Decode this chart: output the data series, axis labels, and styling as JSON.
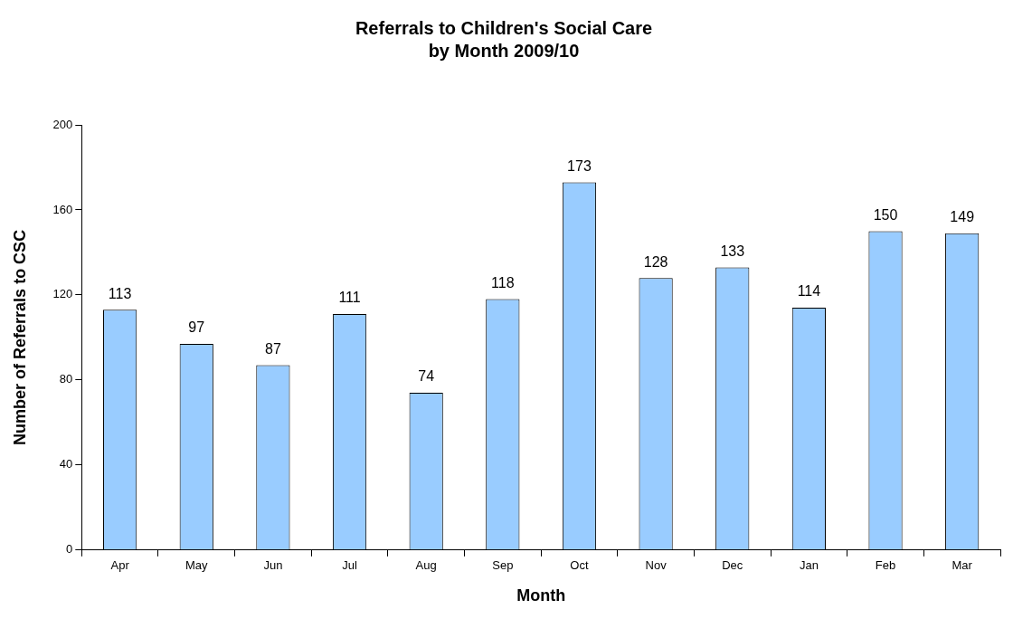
{
  "chart_data": {
    "type": "bar",
    "title": "Referrals to Children's Social Care\nby Month 2009/10",
    "xlabel": "Month",
    "ylabel": "Number of Referrals to CSC",
    "categories": [
      "Apr",
      "May",
      "Jun",
      "Jul",
      "Aug",
      "Sep",
      "Oct",
      "Nov",
      "Dec",
      "Jan",
      "Feb",
      "Mar"
    ],
    "values": [
      113,
      97,
      87,
      111,
      74,
      118,
      173,
      128,
      133,
      114,
      150,
      149
    ],
    "color": "#99ccff",
    "ylim": [
      0,
      200
    ],
    "yticks": [
      0,
      40,
      80,
      120,
      160,
      200
    ],
    "data_labels": true,
    "legend": false
  }
}
